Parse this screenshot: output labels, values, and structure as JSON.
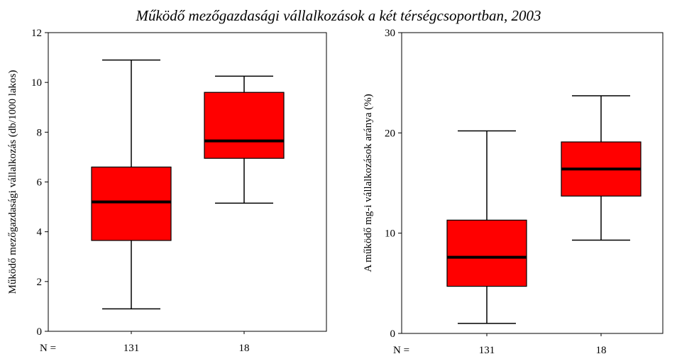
{
  "title": "Működő mezőgazdasági vállalkozások a két térségcsoportban, 2003",
  "colors": {
    "box_fill": "#ff0000",
    "stroke": "#000000",
    "background": "#ffffff"
  },
  "chart_data": [
    {
      "type": "boxplot",
      "ylabel": "Működő mezőgazdasági vállalkozás (db/1000 lakos)",
      "ylim": [
        0,
        12
      ],
      "yticks": [
        0,
        2,
        4,
        6,
        8,
        10,
        12
      ],
      "n_label": "N =",
      "categories": [
        "131",
        "18"
      ],
      "boxes": [
        {
          "n": "131",
          "min": 0.9,
          "q1": 3.65,
          "median": 5.2,
          "q3": 6.6,
          "max": 10.9
        },
        {
          "n": "18",
          "min": 5.15,
          "q1": 6.95,
          "median": 7.65,
          "q3": 9.6,
          "max": 10.25
        }
      ],
      "grid": false
    },
    {
      "type": "boxplot",
      "ylabel": "A működő mg-i vállalkozások aránya (%)",
      "ylim": [
        0,
        30
      ],
      "yticks": [
        0,
        10,
        20,
        30
      ],
      "n_label": "N =",
      "categories": [
        "131",
        "18"
      ],
      "boxes": [
        {
          "n": "131",
          "min": 1.0,
          "q1": 4.7,
          "median": 7.6,
          "q3": 11.3,
          "max": 20.2
        },
        {
          "n": "18",
          "min": 9.3,
          "q1": 13.7,
          "median": 16.4,
          "q3": 19.1,
          "max": 23.7
        }
      ],
      "grid": false
    }
  ]
}
